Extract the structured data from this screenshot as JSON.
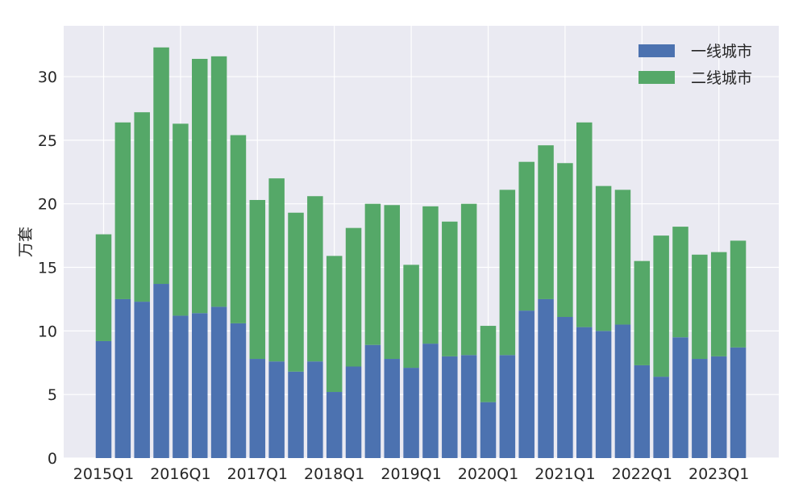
{
  "chart_data": {
    "type": "bar",
    "stacked": true,
    "ylabel": "万套",
    "ylim": [
      0,
      34
    ],
    "yticks": [
      0,
      5,
      10,
      15,
      20,
      25,
      30
    ],
    "grid": true,
    "legend_position": "top-right",
    "categories": [
      "2015Q1",
      "2015Q2",
      "2015Q3",
      "2015Q4",
      "2016Q1",
      "2016Q2",
      "2016Q3",
      "2016Q4",
      "2017Q1",
      "2017Q2",
      "2017Q3",
      "2017Q4",
      "2018Q1",
      "2018Q2",
      "2018Q3",
      "2018Q4",
      "2019Q1",
      "2019Q2",
      "2019Q3",
      "2019Q4",
      "2020Q1",
      "2020Q2",
      "2020Q3",
      "2020Q4",
      "2021Q1",
      "2021Q2",
      "2021Q3",
      "2021Q4",
      "2022Q1",
      "2022Q2",
      "2022Q3",
      "2022Q4",
      "2023Q1",
      "2023Q2"
    ],
    "xtick_labels": [
      "2015Q1",
      "2016Q1",
      "2017Q1",
      "2018Q1",
      "2019Q1",
      "2020Q1",
      "2021Q1",
      "2022Q1",
      "2023Q1"
    ],
    "series": [
      {
        "name": "一线城市",
        "color": "#4c72b0",
        "values": [
          9.2,
          12.5,
          12.3,
          13.7,
          11.2,
          11.4,
          11.9,
          10.6,
          7.8,
          7.6,
          6.8,
          7.6,
          5.2,
          7.2,
          8.9,
          7.8,
          7.1,
          9.0,
          8.0,
          8.1,
          4.4,
          8.1,
          11.6,
          12.5,
          11.1,
          10.3,
          10.0,
          10.5,
          7.3,
          6.4,
          9.5,
          7.8,
          8.0,
          8.7
        ]
      },
      {
        "name": "二线城市",
        "color": "#55a868",
        "values": [
          8.4,
          13.9,
          14.9,
          18.6,
          15.1,
          20.0,
          19.7,
          14.8,
          12.5,
          14.4,
          12.5,
          13.0,
          10.7,
          10.9,
          11.1,
          12.1,
          8.1,
          10.8,
          10.6,
          11.9,
          6.0,
          13.0,
          11.7,
          12.1,
          12.1,
          16.1,
          11.4,
          10.6,
          8.2,
          11.1,
          8.7,
          8.2,
          8.2,
          8.4
        ]
      }
    ]
  }
}
